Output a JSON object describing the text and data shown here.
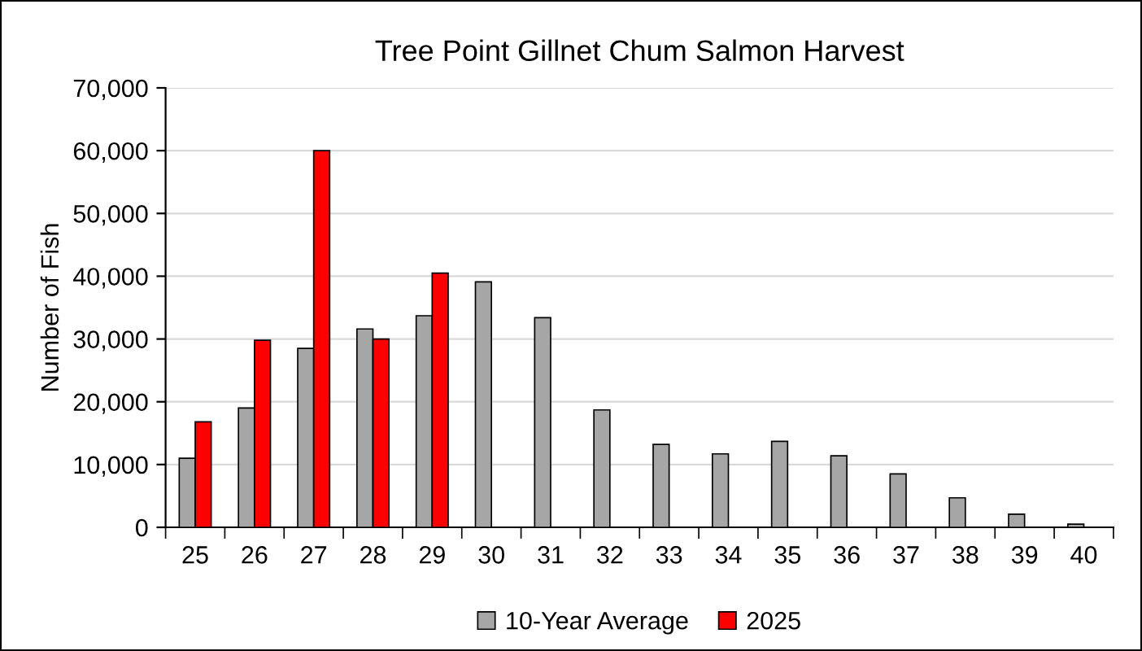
{
  "chart_data": {
    "type": "bar",
    "title": "Tree Point Gillnet Chum Salmon Harvest",
    "ylabel": "Number of Fish",
    "categories": [
      "25",
      "26",
      "27",
      "28",
      "29",
      "30",
      "31",
      "32",
      "33",
      "34",
      "35",
      "36",
      "37",
      "38",
      "39",
      "40"
    ],
    "series": [
      {
        "name": "10-Year Average",
        "color": "#a6a6a6",
        "values": [
          11000,
          19000,
          28500,
          31600,
          33700,
          39100,
          33400,
          18700,
          13200,
          11700,
          13700,
          11400,
          8500,
          4700,
          2100,
          500
        ]
      },
      {
        "name": "2025",
        "color": "#ff0000",
        "values": [
          16800,
          29800,
          60000,
          30000,
          40500,
          null,
          null,
          null,
          null,
          null,
          null,
          null,
          null,
          null,
          null,
          null
        ]
      }
    ],
    "ylim": [
      0,
      70000
    ],
    "yticks": [
      {
        "value": 0,
        "label": "0"
      },
      {
        "value": 10000,
        "label": "10,000"
      },
      {
        "value": 20000,
        "label": "20,000"
      },
      {
        "value": 30000,
        "label": "30,000"
      },
      {
        "value": 40000,
        "label": "40,000"
      },
      {
        "value": 50000,
        "label": "50,000"
      },
      {
        "value": 60000,
        "label": "60,000"
      },
      {
        "value": 70000,
        "label": "70,000"
      }
    ],
    "grid": "y",
    "legend": "bottom"
  }
}
